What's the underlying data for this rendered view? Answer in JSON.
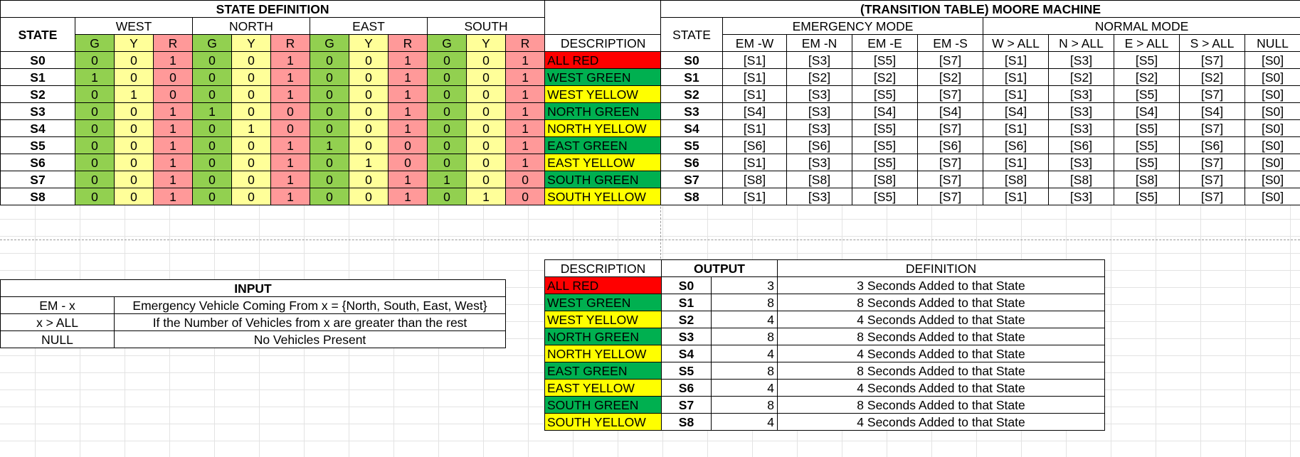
{
  "colors": {
    "green": "#92d050",
    "yellow": "#ffff99",
    "red": "#ff9999",
    "dark_green": "#00b050",
    "bright_yellow": "#ffff00",
    "bright_red": "#ff0000"
  },
  "state_definition": {
    "title": "STATE DEFINITION",
    "state_header": "STATE",
    "description_header": "DESCRIPTION",
    "directions": [
      "WEST",
      "NORTH",
      "EAST",
      "SOUTH"
    ],
    "lights": [
      "G",
      "Y",
      "R"
    ],
    "rows": [
      {
        "state": "S0",
        "bits": [
          "0",
          "0",
          "1",
          "0",
          "0",
          "1",
          "0",
          "0",
          "1",
          "0",
          "0",
          "1"
        ],
        "desc": "ALL RED",
        "desc_color": "red"
      },
      {
        "state": "S1",
        "bits": [
          "1",
          "0",
          "0",
          "0",
          "0",
          "1",
          "0",
          "0",
          "1",
          "0",
          "0",
          "1"
        ],
        "desc": "WEST GREEN",
        "desc_color": "green"
      },
      {
        "state": "S2",
        "bits": [
          "0",
          "1",
          "0",
          "0",
          "0",
          "1",
          "0",
          "0",
          "1",
          "0",
          "0",
          "1"
        ],
        "desc": "WEST YELLOW",
        "desc_color": "yellow"
      },
      {
        "state": "S3",
        "bits": [
          "0",
          "0",
          "1",
          "1",
          "0",
          "0",
          "0",
          "0",
          "1",
          "0",
          "0",
          "1"
        ],
        "desc": "NORTH GREEN",
        "desc_color": "green"
      },
      {
        "state": "S4",
        "bits": [
          "0",
          "0",
          "1",
          "0",
          "1",
          "0",
          "0",
          "0",
          "1",
          "0",
          "0",
          "1"
        ],
        "desc": "NORTH YELLOW",
        "desc_color": "yellow"
      },
      {
        "state": "S5",
        "bits": [
          "0",
          "0",
          "1",
          "0",
          "0",
          "1",
          "1",
          "0",
          "0",
          "0",
          "0",
          "1"
        ],
        "desc": "EAST GREEN",
        "desc_color": "green"
      },
      {
        "state": "S6",
        "bits": [
          "0",
          "0",
          "1",
          "0",
          "0",
          "1",
          "0",
          "1",
          "0",
          "0",
          "0",
          "1"
        ],
        "desc": "EAST YELLOW",
        "desc_color": "yellow"
      },
      {
        "state": "S7",
        "bits": [
          "0",
          "0",
          "1",
          "0",
          "0",
          "1",
          "0",
          "0",
          "1",
          "1",
          "0",
          "0"
        ],
        "desc": "SOUTH GREEN",
        "desc_color": "green"
      },
      {
        "state": "S8",
        "bits": [
          "0",
          "0",
          "1",
          "0",
          "0",
          "1",
          "0",
          "0",
          "1",
          "0",
          "1",
          "0"
        ],
        "desc": "SOUTH YELLOW",
        "desc_color": "yellow"
      }
    ]
  },
  "transition_table": {
    "title": "(TRANSITION TABLE) MOORE MACHINE",
    "state_header": "STATE",
    "emergency_header": "EMERGENCY MODE",
    "normal_header": "NORMAL MODE",
    "columns": [
      "EM -W",
      "EM -N",
      "EM -E",
      "EM -S",
      "W > ALL",
      "N > ALL",
      "E > ALL",
      "S > ALL",
      "NULL"
    ],
    "rows": [
      {
        "state": "S0",
        "next": [
          "[S1]",
          "[S3]",
          "[S5]",
          "[S7]",
          "[S1]",
          "[S3]",
          "[S5]",
          "[S7]",
          "[S0]"
        ]
      },
      {
        "state": "S1",
        "next": [
          "[S1]",
          "[S2]",
          "[S2]",
          "[S2]",
          "[S1]",
          "[S2]",
          "[S2]",
          "[S2]",
          "[S0]"
        ]
      },
      {
        "state": "S2",
        "next": [
          "[S1]",
          "[S3]",
          "[S5]",
          "[S7]",
          "[S1]",
          "[S3]",
          "[S5]",
          "[S7]",
          "[S0]"
        ]
      },
      {
        "state": "S3",
        "next": [
          "[S4]",
          "[S3]",
          "[S4]",
          "[S4]",
          "[S4]",
          "[S3]",
          "[S4]",
          "[S4]",
          "[S0]"
        ]
      },
      {
        "state": "S4",
        "next": [
          "[S1]",
          "[S3]",
          "[S5]",
          "[S7]",
          "[S1]",
          "[S3]",
          "[S5]",
          "[S7]",
          "[S0]"
        ]
      },
      {
        "state": "S5",
        "next": [
          "[S6]",
          "[S6]",
          "[S5]",
          "[S6]",
          "[S6]",
          "[S6]",
          "[S5]",
          "[S6]",
          "[S0]"
        ]
      },
      {
        "state": "S6",
        "next": [
          "[S1]",
          "[S3]",
          "[S5]",
          "[S7]",
          "[S1]",
          "[S3]",
          "[S5]",
          "[S7]",
          "[S0]"
        ]
      },
      {
        "state": "S7",
        "next": [
          "[S8]",
          "[S8]",
          "[S8]",
          "[S7]",
          "[S8]",
          "[S8]",
          "[S8]",
          "[S7]",
          "[S0]"
        ]
      },
      {
        "state": "S8",
        "next": [
          "[S1]",
          "[S3]",
          "[S5]",
          "[S7]",
          "[S1]",
          "[S3]",
          "[S5]",
          "[S7]",
          "[S0]"
        ]
      }
    ]
  },
  "input_table": {
    "title": "INPUT",
    "rows": [
      {
        "key": "EM - x",
        "value": "Emergency Vehicle Coming From x = {North, South, East, West}"
      },
      {
        "key": "x > ALL",
        "value": "If the Number of Vehicles from x are greater than the rest"
      },
      {
        "key": "NULL",
        "value": "No Vehicles Present"
      }
    ]
  },
  "output_table": {
    "description_header": "DESCRIPTION",
    "output_header": "OUTPUT",
    "definition_header": "DEFINITION",
    "rows": [
      {
        "desc": "ALL RED",
        "desc_color": "red",
        "state": "S0",
        "value": "3",
        "definition": "3 Seconds Added to that State"
      },
      {
        "desc": "WEST GREEN",
        "desc_color": "green",
        "state": "S1",
        "value": "8",
        "definition": "8 Seconds Added to that State"
      },
      {
        "desc": "WEST YELLOW",
        "desc_color": "yellow",
        "state": "S2",
        "value": "4",
        "definition": "4 Seconds Added to that State"
      },
      {
        "desc": "NORTH GREEN",
        "desc_color": "green",
        "state": "S3",
        "value": "8",
        "definition": "8 Seconds Added to that State"
      },
      {
        "desc": "NORTH YELLOW",
        "desc_color": "yellow",
        "state": "S4",
        "value": "4",
        "definition": "4 Seconds Added to that State"
      },
      {
        "desc": "EAST GREEN",
        "desc_color": "green",
        "state": "S5",
        "value": "8",
        "definition": "8 Seconds Added to that State"
      },
      {
        "desc": "EAST YELLOW",
        "desc_color": "yellow",
        "state": "S6",
        "value": "4",
        "definition": "4 Seconds Added to that State"
      },
      {
        "desc": "SOUTH GREEN",
        "desc_color": "green",
        "state": "S7",
        "value": "8",
        "definition": "8 Seconds Added to that State"
      },
      {
        "desc": "SOUTH YELLOW",
        "desc_color": "yellow",
        "state": "S8",
        "value": "4",
        "definition": "4 Seconds Added to that State"
      }
    ]
  }
}
